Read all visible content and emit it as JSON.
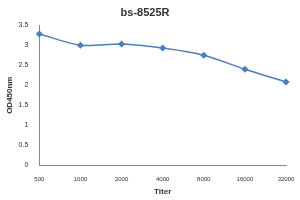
{
  "chart_data": {
    "type": "line",
    "title": "bs-8525R",
    "x_label": "Titer",
    "y_label": "OD450nm",
    "categories": [
      "500",
      "1000",
      "2000",
      "4000",
      "8000",
      "16000",
      "32000"
    ],
    "values": [
      3.28,
      3.0,
      3.03,
      2.93,
      2.75,
      2.4,
      2.08
    ],
    "color": "#4a7ebb",
    "marker": "diamond",
    "line_style": "solid",
    "ylim": [
      0,
      3.5
    ],
    "yticks": [
      0,
      0.5,
      1,
      1.5,
      2,
      2.5,
      3,
      3.5
    ],
    "grid": false
  }
}
